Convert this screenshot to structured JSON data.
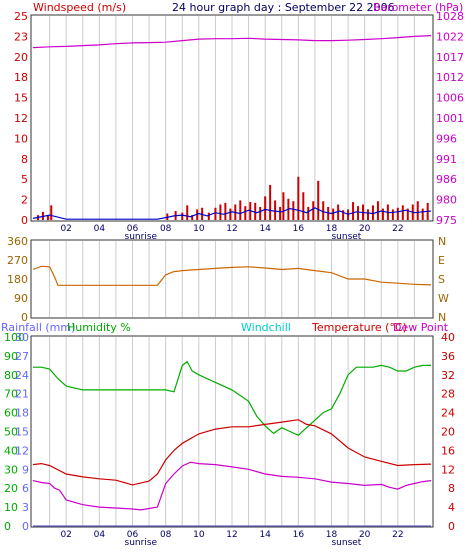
{
  "header": {
    "title": "24 hour graph day : September 22 2006",
    "left_label": "Windspeed (m/s)",
    "right_label": "Barometer (hPa)"
  },
  "colors": {
    "windspeed": "#cc0000",
    "barometer": "#cc00cc",
    "gust": "#0000cc",
    "direction": "#cc6600",
    "rainfall": "#6666cc",
    "humidity": "#00aa00",
    "windchill": "#00cccc",
    "temperature": "#cc0000",
    "dewpoint": "#cc00cc",
    "axis_wind": "#cc0000",
    "axis_baro": "#cc00cc",
    "axis_rain": "#6666ff",
    "axis_hum": "#00aa00",
    "axis_temp": "#cc0000",
    "axis_dir": "#996600",
    "vgrid": "#cccccc"
  },
  "x_axis": {
    "ticks": [
      "02",
      "04",
      "06",
      "08",
      "10",
      "12",
      "14",
      "16",
      "18",
      "20",
      "22"
    ],
    "sunrise_label": "sunrise",
    "sunset_label": "sunset",
    "sunrise_hour": 6.5,
    "sunset_hour": 18.9
  },
  "chart_data": [
    {
      "type": "bar",
      "title": "24 hour graph day : September 22 2006",
      "x_range_hours": [
        0,
        24
      ],
      "left_axis": {
        "label": "Windspeed (m/s)",
        "ylim": [
          0,
          25
        ],
        "ticks": [
          "0",
          "2",
          "5",
          "8",
          "10",
          "12",
          "15",
          "18",
          "20",
          "23",
          "25"
        ]
      },
      "right_axis": {
        "label": "Barometer (hPa)",
        "ylim": [
          975,
          1028
        ],
        "ticks": [
          "975",
          "980",
          "986",
          "991",
          "996",
          "1001",
          "1006",
          "1012",
          "1017",
          "1022",
          "1028"
        ]
      },
      "series": [
        {
          "name": "Windspeed (m/s)",
          "kind": "bars",
          "x_hours": [
            0.3,
            0.6,
            0.9,
            1.1,
            8.1,
            8.6,
            9.0,
            9.3,
            9.6,
            9.9,
            10.2,
            10.6,
            11.0,
            11.3,
            11.6,
            11.9,
            12.2,
            12.5,
            12.8,
            13.1,
            13.4,
            13.7,
            14.0,
            14.3,
            14.6,
            14.9,
            15.1,
            15.4,
            15.7,
            16.0,
            16.3,
            16.6,
            16.9,
            17.2,
            17.5,
            17.8,
            18.1,
            18.4,
            18.7,
            19.0,
            19.3,
            19.6,
            19.9,
            20.2,
            20.5,
            20.8,
            21.1,
            21.4,
            21.7,
            22.0,
            22.3,
            22.6,
            22.9,
            23.2,
            23.5,
            23.8
          ],
          "values": [
            0.6,
            1.0,
            0.5,
            1.8,
            0.8,
            1.1,
            0.9,
            1.8,
            0.6,
            1.3,
            1.5,
            0.9,
            1.5,
            1.9,
            2.1,
            1.4,
            1.9,
            2.4,
            1.7,
            2.2,
            2.1,
            1.6,
            2.9,
            4.3,
            2.4,
            1.6,
            3.4,
            2.6,
            2.3,
            5.3,
            3.4,
            1.6,
            2.3,
            4.8,
            2.3,
            1.6,
            1.4,
            1.9,
            1.2,
            1.3,
            2.2,
            1.7,
            1.9,
            1.3,
            1.8,
            2.3,
            1.4,
            1.9,
            1.3,
            1.5,
            1.8,
            1.4,
            1.9,
            2.3,
            1.4,
            2.1
          ]
        },
        {
          "name": "Windgust",
          "kind": "line",
          "x_hours": [
            0,
            1,
            2,
            3,
            4,
            5,
            6,
            7,
            7.5,
            8,
            8.5,
            9,
            9.5,
            10,
            10.5,
            11,
            11.5,
            12,
            12.5,
            13,
            13.5,
            14,
            14.5,
            15,
            15.5,
            16,
            16.5,
            17,
            17.5,
            18,
            18.5,
            19,
            19.5,
            20,
            20.5,
            21,
            21.5,
            22,
            22.5,
            23,
            23.5,
            24
          ],
          "values": [
            0.2,
            0.6,
            0.1,
            0.1,
            0.1,
            0.1,
            0.1,
            0.1,
            0.1,
            0.3,
            0.5,
            0.6,
            0.4,
            0.8,
            0.5,
            0.9,
            0.7,
            1.0,
            0.8,
            1.2,
            0.9,
            1.3,
            1.1,
            1.0,
            1.4,
            1.2,
            0.9,
            1.5,
            1.0,
            0.8,
            1.1,
            0.7,
            1.0,
            0.9,
            0.8,
            1.1,
            0.9,
            1.0,
            1.2,
            0.9,
            1.0,
            1.1
          ]
        },
        {
          "name": "Barometer (hPa)",
          "kind": "line",
          "axis": "right",
          "x_hours": [
            0,
            1,
            2,
            3,
            4,
            5,
            6,
            7,
            8,
            9,
            10,
            11,
            12,
            13,
            14,
            15,
            16,
            17,
            18,
            19,
            20,
            21,
            22,
            23,
            24
          ],
          "values": [
            1019.8,
            1020.0,
            1020.1,
            1020.3,
            1020.5,
            1020.8,
            1021.0,
            1021.1,
            1021.2,
            1021.6,
            1022.0,
            1022.1,
            1022.1,
            1022.2,
            1022.0,
            1021.9,
            1021.8,
            1021.6,
            1021.6,
            1021.7,
            1021.9,
            1022.1,
            1022.4,
            1022.7,
            1022.9
          ]
        }
      ]
    },
    {
      "type": "line",
      "x_range_hours": [
        0,
        24
      ],
      "left_axis": {
        "ylim": [
          0,
          360
        ],
        "ticks": [
          "0",
          "90",
          "180",
          "270",
          "360"
        ]
      },
      "right_axis": {
        "ticks": [
          "N",
          "W",
          "S",
          "E",
          "N"
        ]
      },
      "series": [
        {
          "name": "Wind direction",
          "x_hours": [
            0,
            0.5,
            1,
            1.3,
            1.5,
            2,
            3,
            4,
            5,
            6,
            7,
            7.5,
            8,
            8.5,
            9,
            10,
            11,
            12,
            13,
            14,
            15,
            16,
            17,
            18,
            19,
            20,
            21,
            22,
            23,
            24
          ],
          "values": [
            225,
            240,
            238,
            190,
            150,
            150,
            150,
            150,
            150,
            150,
            150,
            150,
            200,
            215,
            220,
            225,
            230,
            235,
            238,
            232,
            225,
            230,
            220,
            210,
            180,
            180,
            165,
            160,
            155,
            152
          ]
        }
      ]
    },
    {
      "type": "line",
      "x_range_hours": [
        0,
        24
      ],
      "left_axis_rain": {
        "label": "Rainfall (mm)",
        "ylim": [
          0,
          30
        ],
        "ticks": [
          "0",
          "3",
          "6",
          "9",
          "12",
          "15",
          "18",
          "21",
          "24",
          "27",
          "30"
        ]
      },
      "left_axis_humidity": {
        "label": "Humidity %",
        "ylim": [
          0,
          100
        ],
        "ticks": [
          "0",
          "10",
          "20",
          "30",
          "40",
          "50",
          "60",
          "70",
          "80",
          "90",
          "100"
        ]
      },
      "right_axis": {
        "label": "Temperature (°C)",
        "ylim": [
          0,
          40
        ],
        "ticks": [
          "0",
          "4",
          "8",
          "12",
          "16",
          "20",
          "24",
          "28",
          "32",
          "36",
          "40"
        ]
      },
      "labels": {
        "windchill": "Windchill",
        "dewpoint": "Dew Point"
      },
      "series": [
        {
          "name": "Rainfall (mm)",
          "x_hours": [
            0,
            24
          ],
          "values": [
            0,
            0
          ]
        },
        {
          "name": "Humidity %",
          "x_hours": [
            0,
            0.5,
            1,
            1.5,
            2,
            3,
            4,
            5,
            6,
            7,
            7.5,
            8,
            8.5,
            9,
            9.3,
            9.6,
            10,
            11,
            12,
            13,
            13.5,
            14,
            14.5,
            15,
            15.5,
            16,
            16.5,
            17,
            17.5,
            18,
            18.5,
            19,
            19.5,
            20,
            20.5,
            21,
            21.5,
            22,
            22.5,
            23,
            23.5,
            24
          ],
          "values": [
            84,
            84,
            83,
            78,
            74,
            72,
            72,
            72,
            72,
            72,
            72,
            72,
            71,
            85,
            87,
            82,
            80,
            76,
            72,
            66,
            58,
            53,
            49,
            52,
            50,
            48,
            52,
            56,
            60,
            62,
            70,
            80,
            84,
            84,
            84,
            85,
            84,
            82,
            82,
            84,
            85,
            85
          ]
        },
        {
          "name": "Temperature (°C)",
          "x_hours": [
            0,
            0.5,
            1,
            2,
            3,
            4,
            5,
            6,
            7,
            7.5,
            8,
            8.5,
            9,
            10,
            11,
            12,
            13,
            14,
            15,
            16,
            16.5,
            17,
            18,
            19,
            20,
            21,
            22,
            23,
            24
          ],
          "values": [
            13.0,
            13.2,
            12.8,
            11.0,
            10.4,
            10.0,
            9.7,
            8.7,
            9.5,
            11.0,
            14.0,
            16.0,
            17.5,
            19.5,
            20.5,
            21.0,
            21.0,
            21.5,
            22.0,
            22.5,
            21.5,
            21.2,
            19.5,
            16.5,
            14.6,
            13.7,
            12.8,
            13.0,
            13.1
          ]
        },
        {
          "name": "Dew Point",
          "x_hours": [
            0,
            0.5,
            1,
            1.3,
            1.6,
            2,
            3,
            4,
            5,
            5.5,
            6,
            6.5,
            7,
            7.5,
            8,
            8.5,
            9,
            9.5,
            10,
            11,
            12,
            13,
            14,
            15,
            16,
            17,
            18,
            19,
            20,
            21,
            21.5,
            22,
            22.5,
            23,
            23.5,
            24
          ],
          "values": [
            9.6,
            9.2,
            9.0,
            8.0,
            7.6,
            5.5,
            4.5,
            4.0,
            3.8,
            3.7,
            3.6,
            3.4,
            3.7,
            4.0,
            9.0,
            11.0,
            12.7,
            13.5,
            13.2,
            13.0,
            12.5,
            12.0,
            11.0,
            10.5,
            10.3,
            10.0,
            9.3,
            9.0,
            8.6,
            8.8,
            8.2,
            7.8,
            8.6,
            9.0,
            9.4,
            9.6
          ]
        }
      ]
    }
  ]
}
